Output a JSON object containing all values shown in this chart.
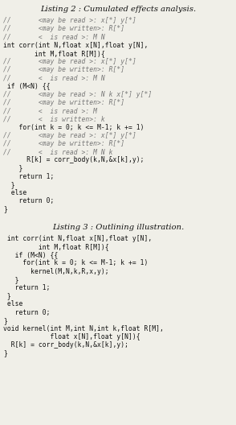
{
  "title2": "Listing 2 : Cumulated effects analysis.",
  "title3": "Listing 3 : Outlining illustration.",
  "bg_color": "#f0efe8",
  "listing2_lines": [
    {
      "type": "comment",
      "text": "//       <may be read >: x[*] y[*]"
    },
    {
      "type": "comment",
      "text": "//       <may be written>: R[*]"
    },
    {
      "type": "comment",
      "text": "//       <  is read >: M N"
    },
    {
      "type": "code",
      "text": "int corr(int N,float x[N],float y[N],"
    },
    {
      "type": "code",
      "text": "        int M,float R[M]){"
    },
    {
      "type": "comment",
      "text": "//       <may be read >: x[*] y[*]"
    },
    {
      "type": "comment",
      "text": "//       <may be written>: R[*]"
    },
    {
      "type": "comment",
      "text": "//       <  is read >: M N"
    },
    {
      "type": "code",
      "text": " if (M<N) {{"
    },
    {
      "type": "comment",
      "text": "//       <may be read >: N k x[*] y[*]"
    },
    {
      "type": "comment",
      "text": "//       <may be written>: R[*]"
    },
    {
      "type": "comment",
      "text": "//       <  is read >: M"
    },
    {
      "type": "comment",
      "text": "//       <  is written>: k"
    },
    {
      "type": "code",
      "text": "    for(int k = 0; k <= M-1; k += 1)"
    },
    {
      "type": "comment",
      "text": "//       <may be read >: x[*] y[*]"
    },
    {
      "type": "comment",
      "text": "//       <may be written>: R[*]"
    },
    {
      "type": "comment",
      "text": "//       <  is read >: M N k"
    },
    {
      "type": "code",
      "text": "      R[k] = corr_body(k,N,&x[k],y);"
    },
    {
      "type": "code",
      "text": "    }"
    },
    {
      "type": "code",
      "text": "    return 1;"
    },
    {
      "type": "code",
      "text": "  }"
    },
    {
      "type": "code",
      "text": "  else"
    },
    {
      "type": "code",
      "text": "    return 0;"
    },
    {
      "type": "code",
      "text": "}"
    }
  ],
  "listing3_lines": [
    " int corr(int N,float x[N],float y[N],",
    "         int M,float R[M]){",
    "   if (M<N) {{",
    "     for(int k = 0; k <= M-1; k += 1)",
    "       kernel(M,N,k,R,x,y);",
    "   }",
    "   return 1;",
    " }",
    " else",
    "   return 0;",
    "}",
    "void kernel(int M,int N,int k,float R[M],",
    "            float x[N],float y[N]){",
    "  R[k] = corr_body(k,N,&x[k],y);",
    "}"
  ],
  "comment_color": "#777777",
  "code_color": "#111111",
  "title_color": "#111111",
  "font_size": 5.8,
  "title_font_size": 7.2
}
